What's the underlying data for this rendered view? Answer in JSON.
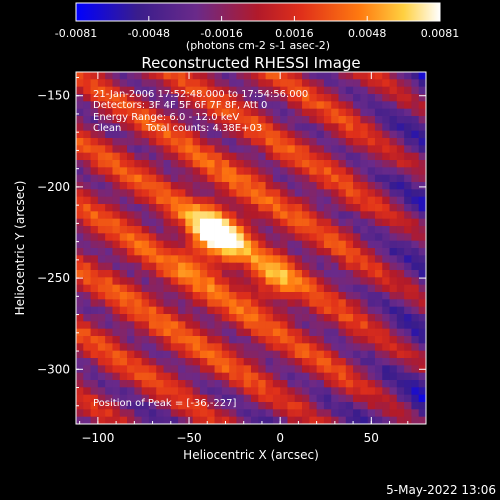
{
  "chart_data": {
    "type": "heatmap",
    "title": "Reconstructed RHESSI Image",
    "xlabel": "Heliocentric X (arcsec)",
    "ylabel": "Heliocentric Y (arcsec)",
    "xlim": [
      -112,
      80
    ],
    "ylim": [
      -330,
      -137
    ],
    "x_ticks": [
      -100,
      -50,
      0,
      50
    ],
    "y_ticks": [
      -150,
      -200,
      -250,
      -300
    ],
    "colorbar": {
      "min": -0.0081,
      "max": 0.0081,
      "ticks": [
        "-0.0081",
        "-0.0048",
        "-0.0016",
        "0.0016",
        "0.0048",
        "0.0081"
      ],
      "units_label": "(photons cm-2 s-1 asec-2)",
      "colors": [
        "#0000ff",
        "#3a1d8c",
        "#6a2a8a",
        "#b21a2a",
        "#e0301a",
        "#ff7a10",
        "#ffd040",
        "#ffffff"
      ]
    },
    "annotations": {
      "time": "21-Jan-2006 17:52:48.000 to 17:54:56.000",
      "detectors": "Detectors: 3F 4F 5F 6F 7F 8F, Att 0",
      "energy": "Energy Range: 6.0 - 12.0 keV",
      "clean_label": "Clean",
      "counts": "Total counts: 4.38E+03",
      "peak": "Position of Peak = [-36,-227]"
    },
    "peak": {
      "x": -36,
      "y": -227,
      "value": 0.0081
    },
    "secondary_source": {
      "x": -5,
      "y": -252
    },
    "grid_cells": 48
  },
  "footer": {
    "date": "5-May-2022 13:06"
  }
}
